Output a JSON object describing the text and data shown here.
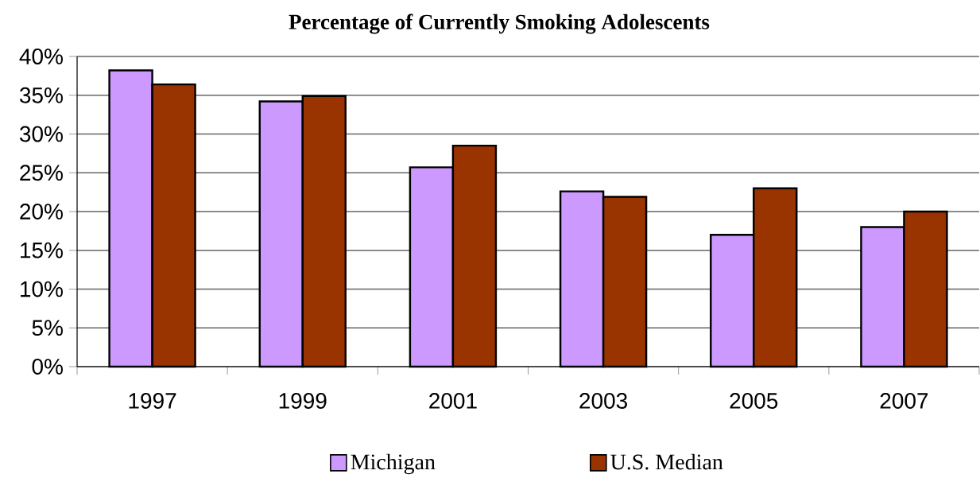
{
  "chart_data": {
    "type": "bar",
    "title": "Percentage of Currently Smoking Adolescents",
    "categories": [
      "1997",
      "1999",
      "2001",
      "2003",
      "2005",
      "2007"
    ],
    "series": [
      {
        "name": "Michigan",
        "color": "#cc99ff",
        "values": [
          38.2,
          34.2,
          25.7,
          22.6,
          17.0,
          18.0
        ]
      },
      {
        "name": "U.S. Median",
        "color": "#993300",
        "values": [
          36.4,
          34.9,
          28.5,
          21.9,
          23.0,
          20.0
        ]
      }
    ],
    "ylim": [
      0,
      40
    ],
    "yticks": [
      {
        "value": 0,
        "label": "0%"
      },
      {
        "value": 5,
        "label": "5%"
      },
      {
        "value": 10,
        "label": "10%"
      },
      {
        "value": 15,
        "label": "15%"
      },
      {
        "value": 20,
        "label": "20%"
      },
      {
        "value": 25,
        "label": "25%"
      },
      {
        "value": 30,
        "label": "30%"
      },
      {
        "value": 35,
        "label": "35%"
      },
      {
        "value": 40,
        "label": "40%"
      }
    ],
    "grid": "y",
    "legend": "bottom"
  }
}
